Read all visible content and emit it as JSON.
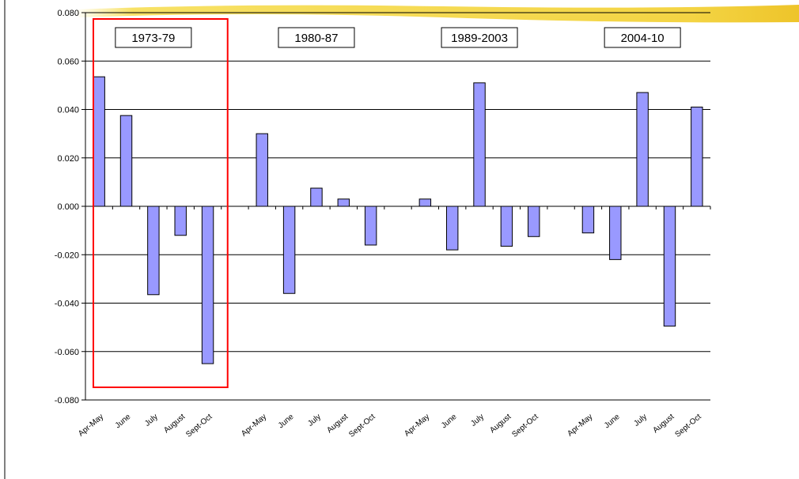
{
  "chart_data": {
    "type": "bar",
    "title": "",
    "xlabel": "",
    "ylabel": "",
    "ylim": [
      -0.08,
      0.08
    ],
    "yticks": [
      "0.080",
      "0.060",
      "0.040",
      "0.020",
      "0.000",
      "-0.020",
      "-0.040",
      "-0.060",
      "-0.080"
    ],
    "grid": true,
    "bar_color": "#9999ff",
    "highlight_color": "#ff0000",
    "highlight_group": "1973-79",
    "groups": [
      {
        "label": "1973-79",
        "categories": [
          "Apr-May",
          "June",
          "July",
          "August",
          "Sept-Oct"
        ],
        "values": [
          0.0535,
          0.0375,
          -0.0365,
          -0.012,
          -0.065
        ]
      },
      {
        "label": "1980-87",
        "categories": [
          "Apr-May",
          "June",
          "July",
          "August",
          "Sept-Oct"
        ],
        "values": [
          0.03,
          -0.036,
          0.0075,
          0.003,
          -0.016
        ]
      },
      {
        "label": "1989-2003",
        "categories": [
          "Apr-May",
          "June",
          "July",
          "August",
          "Sept-Oct"
        ],
        "values": [
          0.003,
          -0.018,
          0.051,
          -0.0165,
          -0.0125
        ]
      },
      {
        "label": "2004-10",
        "categories": [
          "Apr-May",
          "June",
          "July",
          "August",
          "Sept-Oct"
        ],
        "values": [
          -0.011,
          -0.022,
          0.047,
          -0.0495,
          0.041
        ]
      }
    ]
  }
}
